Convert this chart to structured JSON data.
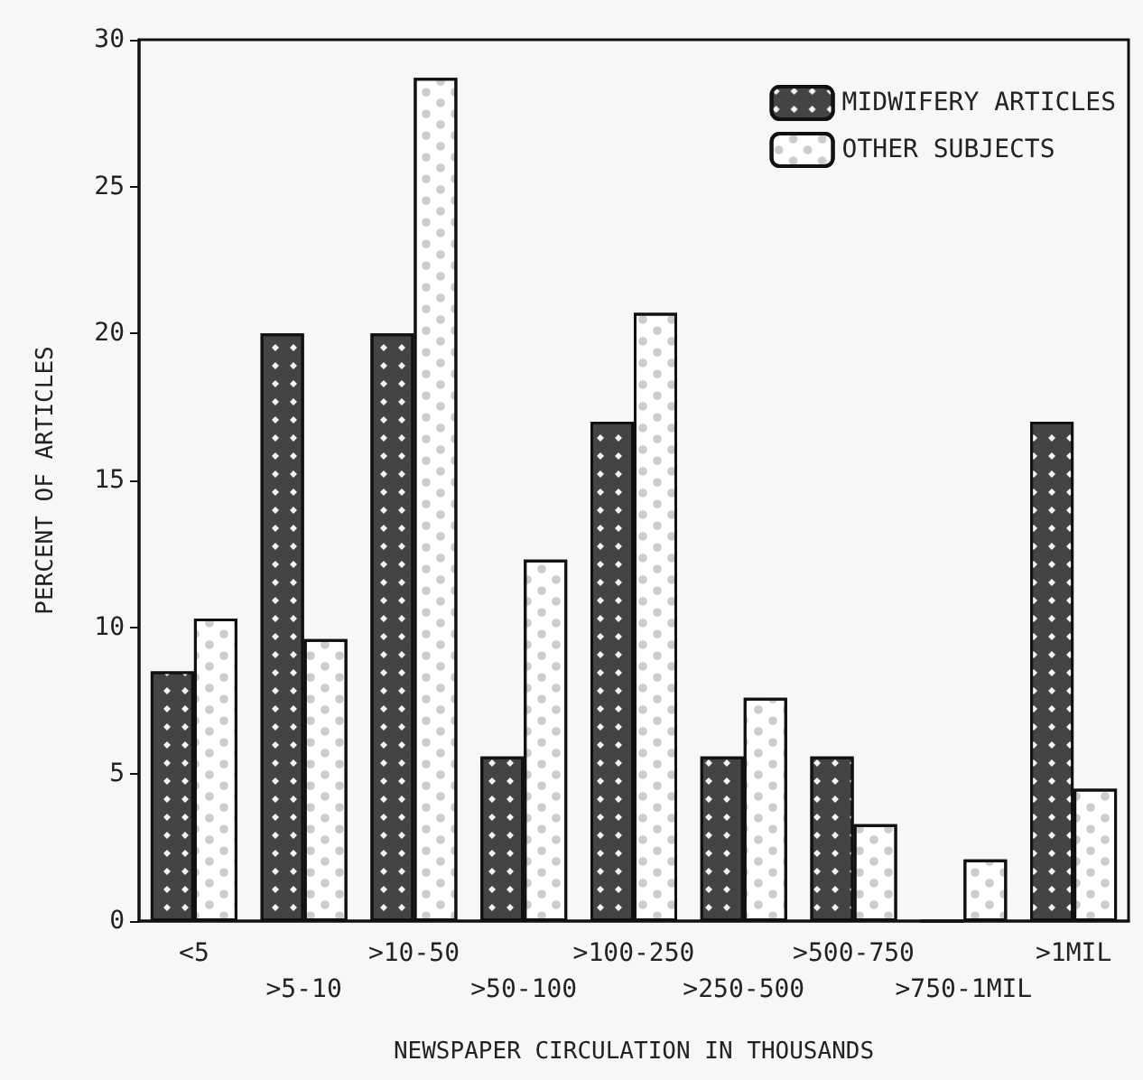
{
  "chart_data": {
    "type": "bar",
    "xlabel": "NEWSPAPER CIRCULATION IN THOUSANDS",
    "ylabel": "PERCENT OF ARTICLES",
    "categories": [
      "<5",
      ">5-10",
      ">10-50",
      ">50-100",
      ">100-250",
      ">250-500",
      ">500-750",
      ">750-1MIL",
      ">1MIL"
    ],
    "series": [
      {
        "name": "MIDWIFERY ARTICLES",
        "color": "#444444",
        "values": [
          8.5,
          20,
          20,
          5.6,
          17,
          5.6,
          5.6,
          0,
          17
        ]
      },
      {
        "name": "OTHER SUBJECTS",
        "color": "#ffffff",
        "values": [
          10.3,
          9.6,
          28.7,
          12.3,
          20.7,
          7.6,
          3.3,
          2.1,
          4.5
        ]
      }
    ],
    "ylim": [
      0,
      30
    ],
    "yticks": [
      0,
      5,
      10,
      15,
      20,
      25,
      30
    ],
    "grid": false,
    "legend": "top right"
  }
}
